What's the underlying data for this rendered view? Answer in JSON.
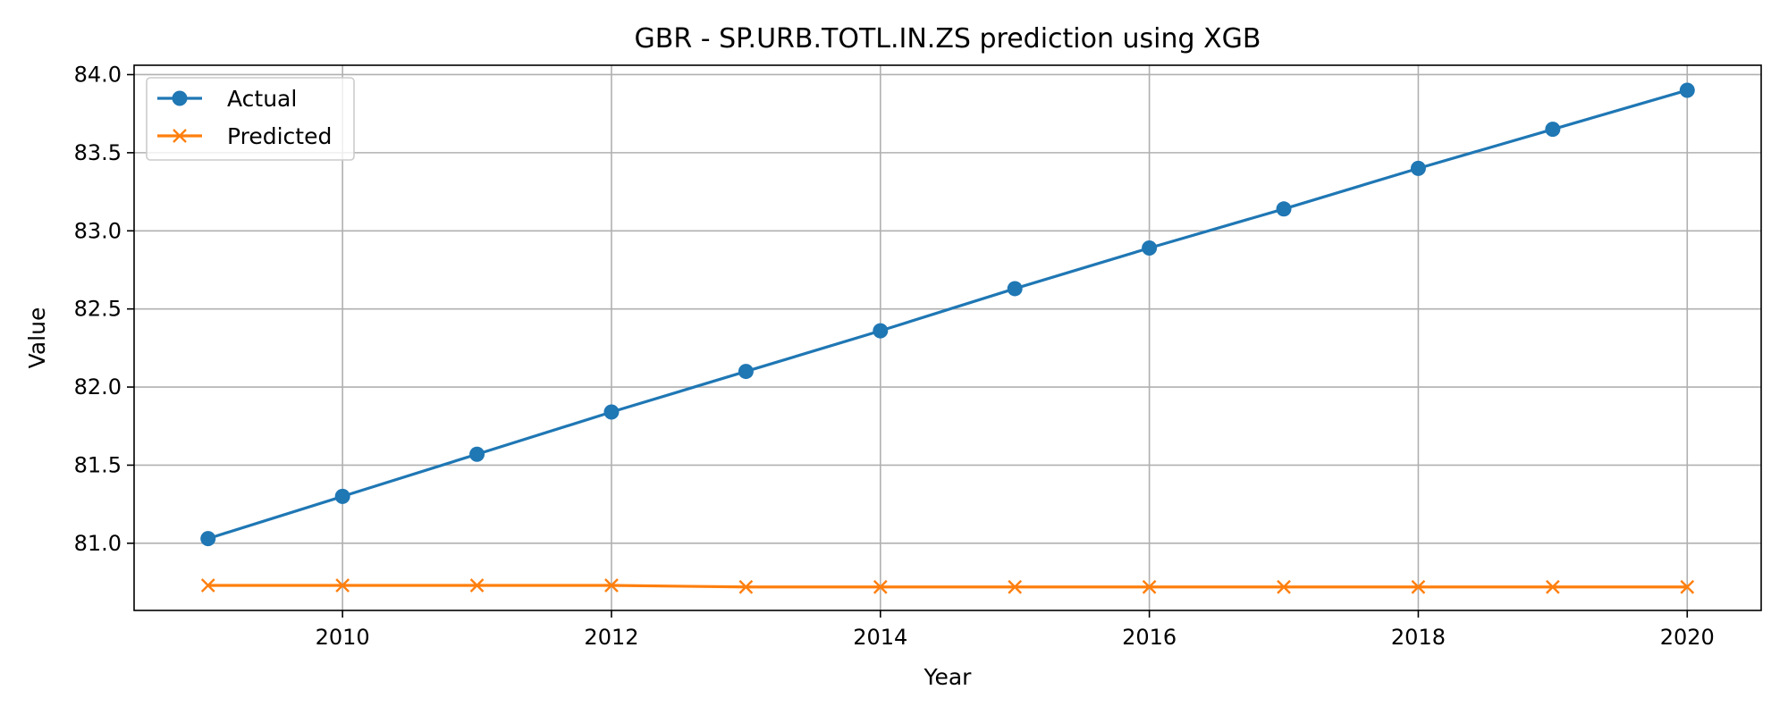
{
  "chart_data": {
    "type": "line",
    "title": "GBR - SP.URB.TOTL.IN.ZS prediction using XGB",
    "xlabel": "Year",
    "ylabel": "Value",
    "xlim": [
      2008.45,
      2020.55
    ],
    "ylim": [
      80.57,
      84.06
    ],
    "x_ticks": [
      2010,
      2012,
      2014,
      2016,
      2018,
      2020
    ],
    "x_tick_labels": [
      "2010",
      "2012",
      "2014",
      "2016",
      "2018",
      "2020"
    ],
    "y_ticks": [
      81.0,
      81.5,
      82.0,
      82.5,
      83.0,
      83.5,
      84.0
    ],
    "y_tick_labels": [
      "81.0",
      "81.5",
      "82.0",
      "82.5",
      "83.0",
      "83.5",
      "84.0"
    ],
    "grid": true,
    "legend_position": "top-left",
    "x": [
      2009,
      2010,
      2011,
      2012,
      2013,
      2014,
      2015,
      2016,
      2017,
      2018,
      2019,
      2020
    ],
    "series": [
      {
        "name": "Actual",
        "color": "#1f77b4",
        "marker": "circle",
        "values": [
          81.03,
          81.3,
          81.57,
          81.84,
          82.1,
          82.36,
          82.63,
          82.89,
          83.14,
          83.4,
          83.65,
          83.9
        ]
      },
      {
        "name": "Predicted",
        "color": "#ff7f0e",
        "marker": "x",
        "values": [
          80.73,
          80.73,
          80.73,
          80.73,
          80.72,
          80.72,
          80.72,
          80.72,
          80.72,
          80.72,
          80.72,
          80.72
        ]
      }
    ]
  }
}
